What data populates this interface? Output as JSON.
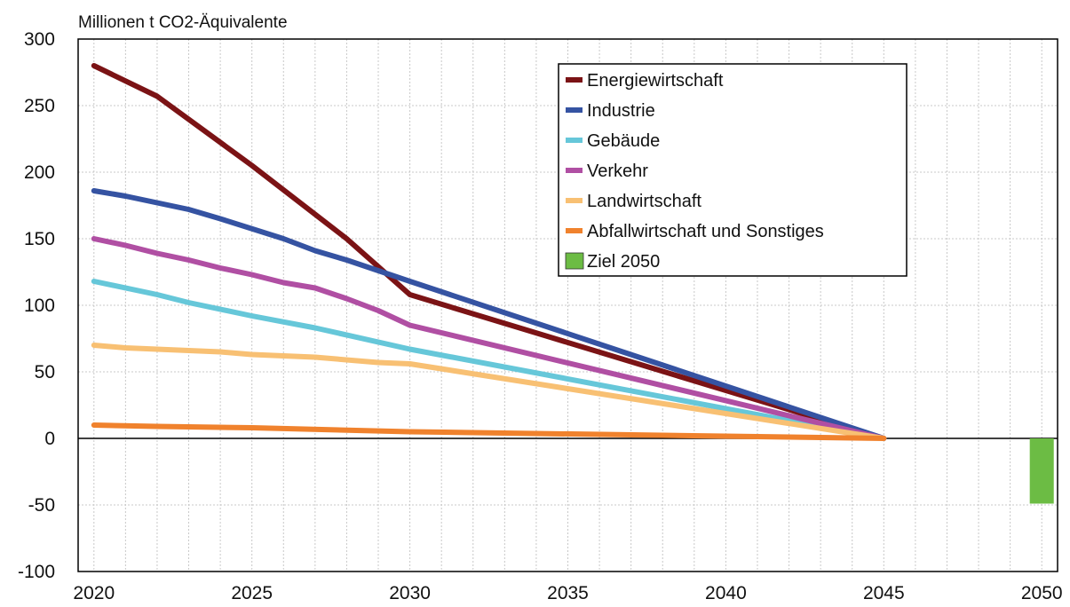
{
  "chart_data": {
    "type": "line",
    "ylabel": "Millionen t CO2-Äquivalente",
    "xlim": [
      2019.5,
      2050.5
    ],
    "ylim": [
      -100,
      300
    ],
    "grid": true,
    "legend_position": "top-right",
    "x_ticks": [
      "2020",
      "2025",
      "2030",
      "2035",
      "2040",
      "2045",
      "2050"
    ],
    "y_ticks": [
      "300",
      "250",
      "200",
      "150",
      "100",
      "50",
      "0",
      "-50",
      "-100"
    ],
    "series": [
      {
        "name": "Energiewirtschaft",
        "color": "#7b1315",
        "points": [
          [
            2020,
            280
          ],
          [
            2022,
            257
          ],
          [
            2025,
            205
          ],
          [
            2028,
            150
          ],
          [
            2030,
            108
          ],
          [
            2045,
            0
          ]
        ]
      },
      {
        "name": "Industrie",
        "color": "#3553a2",
        "points": [
          [
            2020,
            186
          ],
          [
            2021,
            182
          ],
          [
            2023,
            172
          ],
          [
            2024,
            165
          ],
          [
            2026,
            150
          ],
          [
            2027,
            141
          ],
          [
            2028,
            134
          ],
          [
            2030,
            118
          ],
          [
            2045,
            0
          ]
        ]
      },
      {
        "name": "Gebäude",
        "color": "#66c7d9",
        "points": [
          [
            2020,
            118
          ],
          [
            2022,
            108
          ],
          [
            2023,
            102
          ],
          [
            2025,
            92
          ],
          [
            2027,
            83
          ],
          [
            2030,
            67
          ],
          [
            2045,
            0
          ]
        ]
      },
      {
        "name": "Verkehr",
        "color": "#b04fa3",
        "points": [
          [
            2020,
            150
          ],
          [
            2021,
            145
          ],
          [
            2022,
            139
          ],
          [
            2023,
            134
          ],
          [
            2024,
            128
          ],
          [
            2025,
            123
          ],
          [
            2026,
            117
          ],
          [
            2027,
            113
          ],
          [
            2028,
            105
          ],
          [
            2029,
            96
          ],
          [
            2030,
            85
          ],
          [
            2045,
            0
          ]
        ]
      },
      {
        "name": "Landwirtschaft",
        "color": "#f8c073",
        "points": [
          [
            2020,
            70
          ],
          [
            2021,
            68
          ],
          [
            2024,
            65
          ],
          [
            2025,
            63
          ],
          [
            2027,
            61
          ],
          [
            2029,
            57
          ],
          [
            2030,
            56
          ],
          [
            2045,
            0
          ]
        ]
      },
      {
        "name": "Abfallwirtschaft und Sonstiges",
        "color": "#f0822d",
        "points": [
          [
            2020,
            10
          ],
          [
            2022,
            9
          ],
          [
            2025,
            8
          ],
          [
            2030,
            5
          ],
          [
            2045,
            0
          ]
        ]
      }
    ],
    "bars": [
      {
        "name": "Ziel 2050",
        "color": "#6cbc44",
        "x": 2050,
        "value": -49
      }
    ]
  }
}
